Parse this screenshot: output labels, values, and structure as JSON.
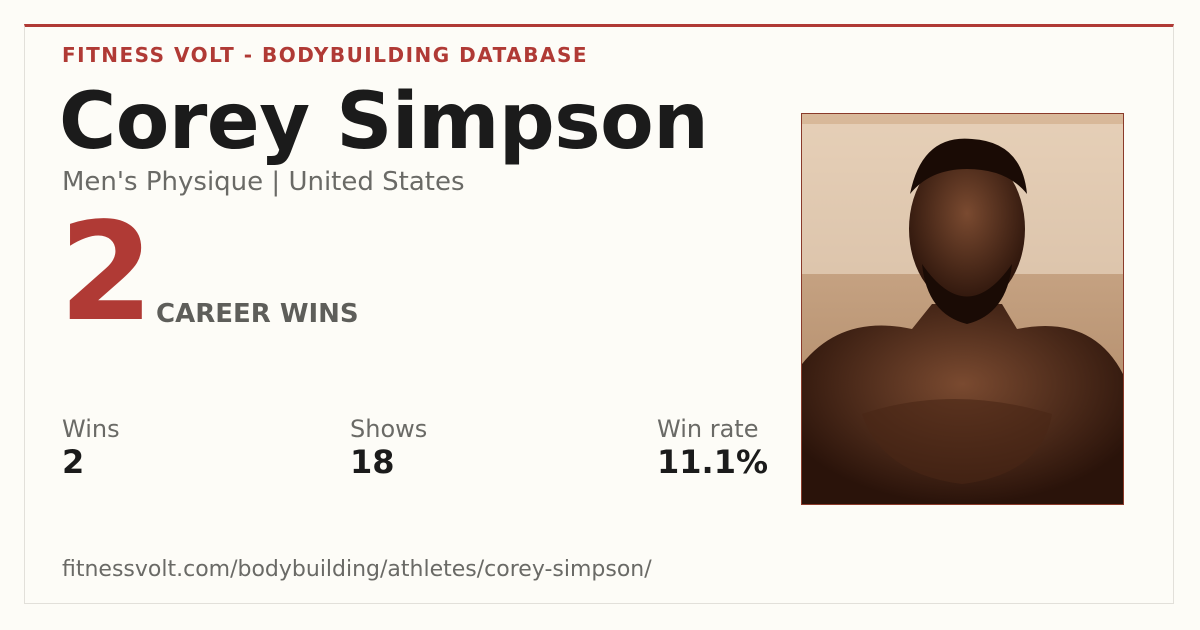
{
  "header": {
    "brand": "FITNESS VOLT - BODYBUILDING DATABASE"
  },
  "athlete": {
    "name": "Corey Simpson",
    "subtitle": "Men's Physique | United States"
  },
  "career": {
    "value": "2",
    "label": "CAREER WINS"
  },
  "stats": [
    {
      "label": "Wins",
      "value": "2"
    },
    {
      "label": "Shows",
      "value": "18"
    },
    {
      "label": "Win rate",
      "value": "11.1%"
    }
  ],
  "url": "fitnessvolt.com/bodybuilding/athletes/corey-simpson/"
}
